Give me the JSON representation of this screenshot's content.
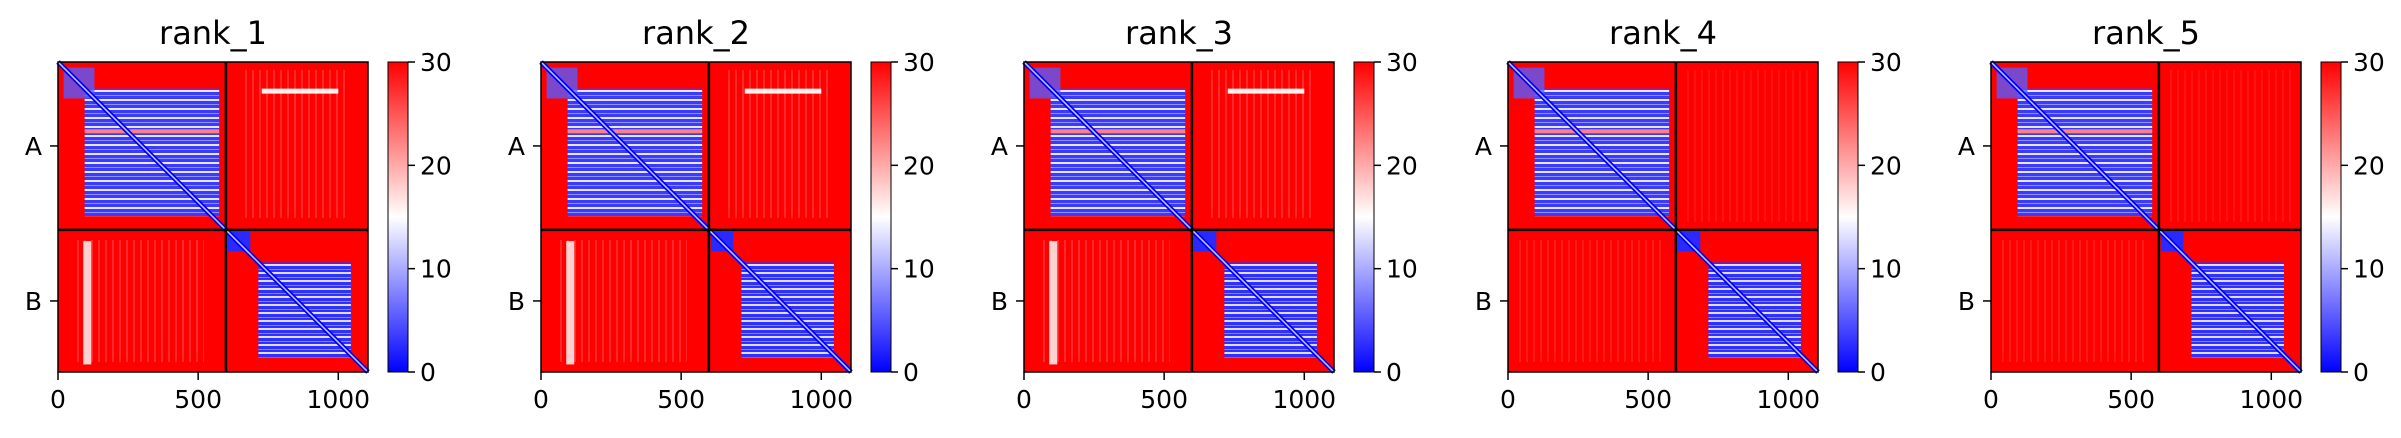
{
  "chart_data": {
    "type": "heatmap",
    "colormap": "bwr",
    "colors": {
      "low": "#0000ff",
      "mid": "#ffffff",
      "high": "#ff0000",
      "frame": "#000000"
    },
    "color_range": [
      0,
      30
    ],
    "colorbar_ticks": [
      "0",
      "10",
      "20",
      "30"
    ],
    "x_ticks": [
      0,
      500,
      1000
    ],
    "x_range": [
      0,
      1106
    ],
    "chain_boundary": 599,
    "chain_labels": [
      "A",
      "B"
    ],
    "chain_A_range": [
      0,
      599
    ],
    "chain_B_range": [
      599,
      1106
    ],
    "panels": [
      {
        "title": "rank_1",
        "intra_low_error": true,
        "inter_light_bands": true,
        "a_white_row_ticks": [
          "727",
          "1000"
        ]
      },
      {
        "title": "rank_2",
        "intra_low_error": true,
        "inter_light_bands": true,
        "a_white_row_ticks": [
          "727",
          "1000"
        ]
      },
      {
        "title": "rank_3",
        "intra_low_error": true,
        "inter_light_bands": true,
        "a_white_row_ticks": [
          "727",
          "1000"
        ]
      },
      {
        "title": "rank_4",
        "intra_low_error": true,
        "inter_light_bands": false,
        "a_white_row_ticks": []
      },
      {
        "title": "rank_5",
        "intra_low_error": true,
        "inter_light_bands": false,
        "a_white_row_ticks": []
      }
    ]
  }
}
